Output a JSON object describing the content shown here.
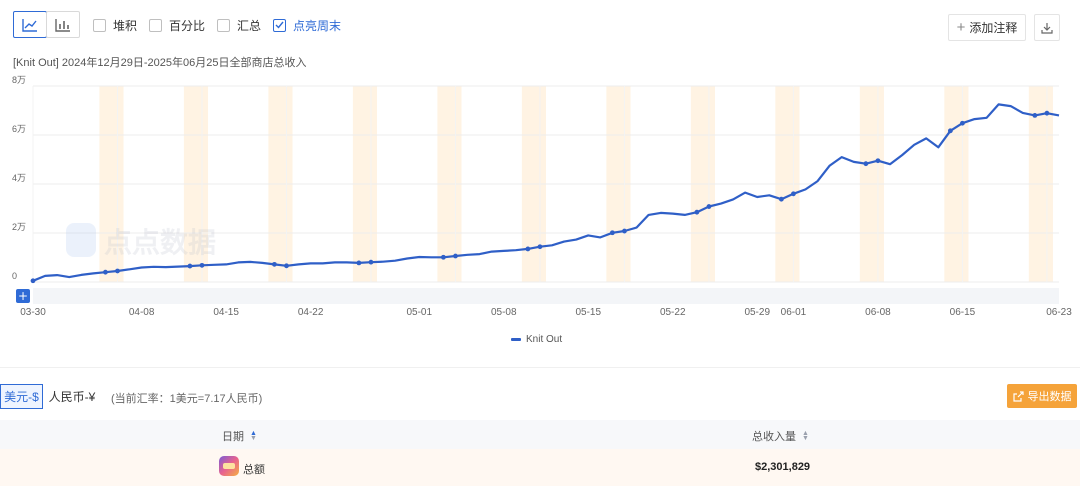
{
  "toolbar": {
    "options": {
      "stack": "堆积",
      "percent": "百分比",
      "sum": "汇总",
      "highlight_weekend": "点亮周末"
    },
    "annotate_label": "添加注释"
  },
  "chart_data": {
    "type": "line",
    "title": "[Knit Out] 2024年12月29日-2025年06月25日全部商店总收入",
    "x_ticks": [
      "03-30",
      "04-08",
      "04-15",
      "04-22",
      "05-01",
      "05-08",
      "05-15",
      "05-22",
      "05-29",
      "06-01",
      "06-08",
      "06-15",
      "06-23"
    ],
    "y_ticks": [
      "0",
      "2万",
      "4万",
      "6万",
      "8万"
    ],
    "ylim": [
      0,
      80000
    ],
    "legend_position": "bottom",
    "highlight_weekends": true,
    "series": [
      {
        "name": "Knit Out",
        "color": "#2f5fc7",
        "x": [
          "03-30",
          "03-31",
          "04-01",
          "04-02",
          "04-03",
          "04-04",
          "04-05",
          "04-06",
          "04-07",
          "04-08",
          "04-09",
          "04-10",
          "04-11",
          "04-12",
          "04-13",
          "04-14",
          "04-15",
          "04-16",
          "04-17",
          "04-18",
          "04-19",
          "04-20",
          "04-21",
          "04-22",
          "04-23",
          "04-24",
          "04-25",
          "04-26",
          "04-27",
          "04-28",
          "04-29",
          "04-30",
          "05-01",
          "05-02",
          "05-03",
          "05-04",
          "05-05",
          "05-06",
          "05-07",
          "05-08",
          "05-09",
          "05-10",
          "05-11",
          "05-12",
          "05-13",
          "05-14",
          "05-15",
          "05-16",
          "05-17",
          "05-18",
          "05-19",
          "05-20",
          "05-21",
          "05-22",
          "05-23",
          "05-24",
          "05-25",
          "05-26",
          "05-27",
          "05-28",
          "05-29",
          "05-30",
          "05-31",
          "06-01",
          "06-02",
          "06-03",
          "06-04",
          "06-05",
          "06-06",
          "06-07",
          "06-08",
          "06-09",
          "06-10",
          "06-11",
          "06-12",
          "06-13",
          "06-14",
          "06-15",
          "06-16",
          "06-17",
          "06-18",
          "06-19",
          "06-20",
          "06-21",
          "06-22",
          "06-23"
        ],
        "values": [
          500,
          2500,
          2800,
          2000,
          2900,
          3500,
          4000,
          4500,
          5200,
          5900,
          6200,
          6100,
          6300,
          6500,
          6800,
          7000,
          7200,
          8000,
          8200,
          7800,
          7200,
          6600,
          7200,
          7600,
          7600,
          8000,
          8000,
          7800,
          8100,
          8300,
          8700,
          9600,
          10200,
          10100,
          10100,
          10600,
          11100,
          11400,
          12400,
          12700,
          13000,
          13500,
          14400,
          15000,
          16500,
          17300,
          19000,
          18200,
          20100,
          20800,
          22200,
          27400,
          28200,
          27900,
          27400,
          28500,
          30800,
          32000,
          33700,
          36500,
          34700,
          35400,
          33800,
          36000,
          37800,
          41200,
          47500,
          51000,
          49000,
          48300,
          49500,
          48100,
          51800,
          56000,
          58600,
          55000,
          61700,
          64800,
          66500,
          67000,
          72500,
          71800,
          69000,
          68000,
          68900,
          68000
        ]
      }
    ]
  },
  "currency": {
    "usd": "美元-$",
    "rmb": "人民币-¥",
    "rate_note": "(当前汇率：1美元=7.17人民币)"
  },
  "export_label": "导出数据",
  "table": {
    "col_date": "日期",
    "col_total": "总收入量",
    "total_row": {
      "label": "总额",
      "value": "$2,301,829"
    }
  },
  "colors": {
    "accent": "#2f6bd6",
    "line": "#2f5fc7",
    "weekend": "#fff3e3",
    "export": "#f5a33a"
  }
}
